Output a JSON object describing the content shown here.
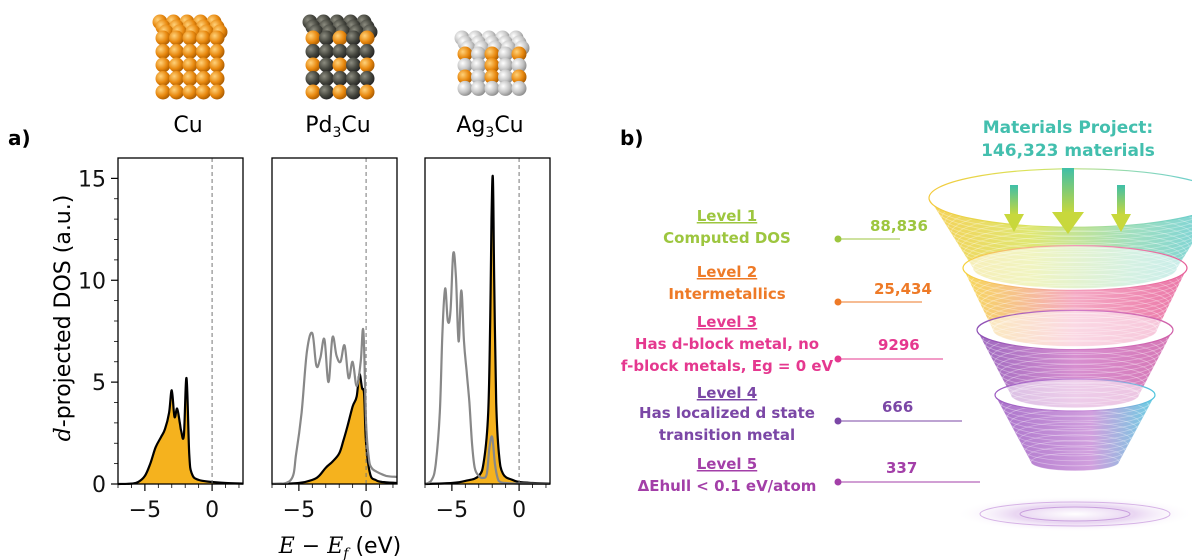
{
  "panel_labels": {
    "a": "a)",
    "b": "b)"
  },
  "chart_data": [
    {
      "type": "area",
      "panels": [
        "Cu",
        "Pd3Cu",
        "Ag3Cu"
      ],
      "panel_titles": [
        {
          "base": "Cu",
          "sub": ""
        },
        {
          "base": "Pd",
          "sub": "3",
          "tail": "Cu"
        },
        {
          "base": "Ag",
          "sub": "3",
          "tail": "Cu"
        }
      ],
      "ylabel": {
        "italic": "d",
        "rest": "-projected DOS (a.u.)"
      },
      "xlabel": {
        "italic_E": "E",
        "minus": " − ",
        "italic_Ef": "E",
        "sub_f": "f",
        "unit": " (eV)"
      },
      "x_ticks": [
        -5,
        0
      ],
      "y_ticks": [
        0,
        5,
        10,
        15
      ],
      "xlim": [
        -7,
        2.3
      ],
      "ylim": [
        0,
        16
      ],
      "fermi_level": 0,
      "colors": {
        "cu_fill": "#F5B21E",
        "cu_line": "#000000",
        "host_line": "#888888",
        "fermi": "#777777"
      },
      "series": [
        {
          "panel": "Cu",
          "component": "Cu d-states",
          "x": [
            -7,
            -6,
            -5.5,
            -5,
            -4.6,
            -4.2,
            -3.8,
            -3.5,
            -3.2,
            -3.0,
            -2.8,
            -2.6,
            -2.4,
            -2.3,
            -2.1,
            -1.9,
            -1.7,
            -1.5,
            -1,
            0,
            1,
            2.3
          ],
          "y": [
            0,
            0.02,
            0.1,
            0.4,
            1.0,
            1.8,
            2.3,
            2.7,
            3.5,
            4.6,
            3.3,
            3.7,
            3.0,
            2.6,
            2.4,
            5.2,
            1.5,
            0.5,
            0.2,
            0.1,
            0.05,
            0.02
          ]
        },
        {
          "panel": "Pd3Cu",
          "component": "Cu d-states",
          "x": [
            -7,
            -5,
            -4,
            -3.5,
            -3,
            -2.5,
            -2,
            -1.7,
            -1.4,
            -1.0,
            -0.7,
            -0.5,
            -0.3,
            -0.15,
            0,
            0.3,
            0.7,
            1.2,
            2.3
          ],
          "y": [
            0,
            0.05,
            0.2,
            0.4,
            0.8,
            1.1,
            1.5,
            2.1,
            2.8,
            3.8,
            4.3,
            5.4,
            4.7,
            4.4,
            2.0,
            0.5,
            0.2,
            0.1,
            0.05
          ]
        },
        {
          "panel": "Pd3Cu",
          "component": "Pd d-states",
          "x": [
            -7,
            -5.6,
            -5.2,
            -4.8,
            -4.4,
            -4.0,
            -3.7,
            -3.4,
            -3.1,
            -2.8,
            -2.5,
            -2.2,
            -1.9,
            -1.6,
            -1.3,
            -1.0,
            -0.7,
            -0.4,
            -0.2,
            0,
            0.2,
            0.4,
            0.8,
            1.5,
            2.3
          ],
          "y": [
            0,
            0.2,
            1.5,
            3.5,
            6.5,
            7.4,
            5.8,
            6.2,
            7.1,
            5.0,
            7.2,
            6.3,
            6.0,
            6.8,
            5.2,
            6.0,
            4.8,
            6.0,
            7.5,
            3.0,
            1.3,
            0.8,
            0.6,
            0.4,
            0.35
          ]
        },
        {
          "panel": "Ag3Cu",
          "component": "Cu d-states",
          "x": [
            -7,
            -5,
            -4,
            -3,
            -2.6,
            -2.3,
            -2.15,
            -2.05,
            -1.95,
            -1.85,
            -1.7,
            -1.5,
            -1.2,
            -0.5,
            0,
            1,
            2.3
          ],
          "y": [
            0,
            0.05,
            0.15,
            0.4,
            1.2,
            3.5,
            8,
            13,
            15.0,
            10,
            4,
            1.5,
            0.5,
            0.2,
            0.1,
            0.05,
            0.02
          ]
        },
        {
          "panel": "Ag3Cu",
          "component": "Ag d-states",
          "x": [
            -7,
            -6.5,
            -6.2,
            -5.9,
            -5.7,
            -5.5,
            -5.3,
            -5.1,
            -4.9,
            -4.7,
            -4.5,
            -4.3,
            -4.1,
            -3.9,
            -3.7,
            -3.5,
            -3.3,
            -3.0,
            -2.7,
            -2.4,
            -2.2,
            -2.0,
            -1.8,
            -1.6,
            -1.4,
            -1.0,
            0,
            2.3
          ],
          "y": [
            0,
            0.2,
            1.0,
            3.5,
            7.5,
            9.6,
            8.0,
            8.5,
            11.3,
            10.2,
            7.0,
            9.5,
            7.0,
            5.5,
            4.0,
            2.0,
            0.8,
            0.4,
            0.3,
            0.5,
            1.8,
            2.3,
            1.0,
            0.3,
            0.1,
            0.05,
            0.02,
            0.01
          ]
        }
      ]
    },
    {
      "type": "funnel",
      "source": {
        "line1": "Materials Project:",
        "line2": "146,323 materials"
      },
      "levels": [
        {
          "name": "Level 1",
          "desc": [
            "Computed DOS"
          ],
          "count": "88,836",
          "color": "#9DC63F"
        },
        {
          "name": "Level 2",
          "desc": [
            "Intermetallics"
          ],
          "count": "25,434",
          "color": "#EE7A27"
        },
        {
          "name": "Level 3",
          "desc": [
            "Has d-block metal, no",
            "f-block metals, Eg = 0 eV"
          ],
          "count": "9296",
          "color": "#E5388F"
        },
        {
          "name": "Level 4",
          "desc": [
            "Has localized d state",
            "transition metal"
          ],
          "count": "666",
          "color": "#7B47A6"
        },
        {
          "name": "Level 5",
          "desc": [
            "ΔEhull < 0.1 eV/atom"
          ],
          "count": "337",
          "color": "#A33FA8"
        }
      ],
      "source_color": "#43BFAE"
    }
  ]
}
